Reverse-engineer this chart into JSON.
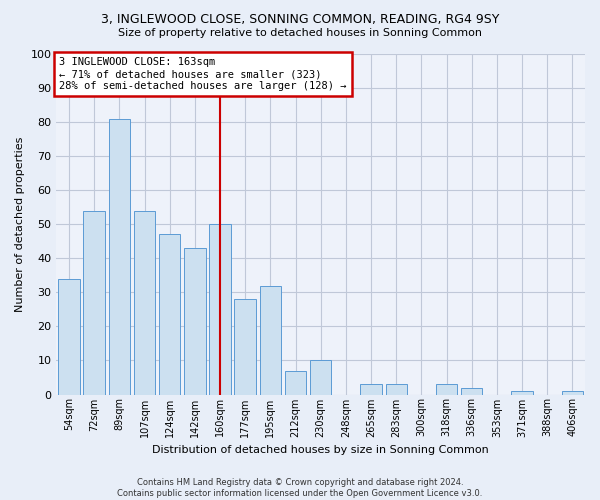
{
  "title1": "3, INGLEWOOD CLOSE, SONNING COMMON, READING, RG4 9SY",
  "title2": "Size of property relative to detached houses in Sonning Common",
  "xlabel": "Distribution of detached houses by size in Sonning Common",
  "ylabel": "Number of detached properties",
  "footer1": "Contains HM Land Registry data © Crown copyright and database right 2024.",
  "footer2": "Contains public sector information licensed under the Open Government Licence v3.0.",
  "annotation_title": "3 INGLEWOOD CLOSE: 163sqm",
  "annotation_line1": "← 71% of detached houses are smaller (323)",
  "annotation_line2": "28% of semi-detached houses are larger (128) →",
  "categories": [
    "54sqm",
    "72sqm",
    "89sqm",
    "107sqm",
    "124sqm",
    "142sqm",
    "160sqm",
    "177sqm",
    "195sqm",
    "212sqm",
    "230sqm",
    "248sqm",
    "265sqm",
    "283sqm",
    "300sqm",
    "318sqm",
    "336sqm",
    "353sqm",
    "371sqm",
    "388sqm",
    "406sqm"
  ],
  "values": [
    34,
    54,
    81,
    54,
    47,
    43,
    50,
    28,
    32,
    7,
    10,
    0,
    3,
    3,
    0,
    3,
    2,
    0,
    1,
    0,
    1
  ],
  "bar_color": "#cce0f0",
  "bar_edge_color": "#5b9bd5",
  "vline_color": "#cc0000",
  "vline_x": 6,
  "annotation_box_color": "#cc0000",
  "annotation_box_fill": "#ffffff",
  "grid_color": "#c0c8d8",
  "bg_color": "#e8eef8",
  "plot_bg_color": "#eef2fa",
  "ylim": [
    0,
    100
  ],
  "yticks": [
    0,
    10,
    20,
    30,
    40,
    50,
    60,
    70,
    80,
    90,
    100
  ],
  "fig_width": 6.0,
  "fig_height": 5.0,
  "dpi": 100
}
